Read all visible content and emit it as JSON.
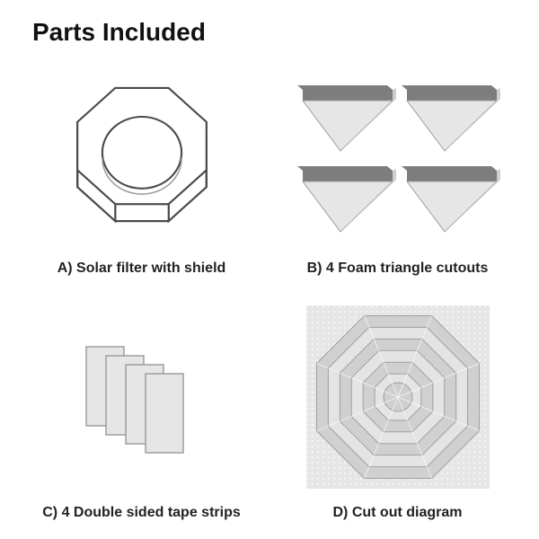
{
  "title": "Parts Included",
  "title_fontsize": 28,
  "caption_fontsize": 16,
  "colors": {
    "background": "#ffffff",
    "heading": "#111111",
    "caption": "#222222",
    "line": "#4a4a4a",
    "line_light": "#9d9d9d",
    "fill_light": "#e6e6e6",
    "fill_mid": "#cfcfcf",
    "fill_dark": "#7d7d7d",
    "white": "#ffffff"
  },
  "panels": {
    "a": {
      "caption": "A) Solar filter with shield",
      "type": "octagon-prism-with-hole"
    },
    "b": {
      "caption": "B) 4 Foam triangle cutouts",
      "type": "four-foam-wedges"
    },
    "c": {
      "caption": "C) 4 Double sided tape strips",
      "type": "four-tape-strips"
    },
    "d": {
      "caption": "D) Cut out diagram",
      "type": "concentric-octagon-guide"
    }
  }
}
